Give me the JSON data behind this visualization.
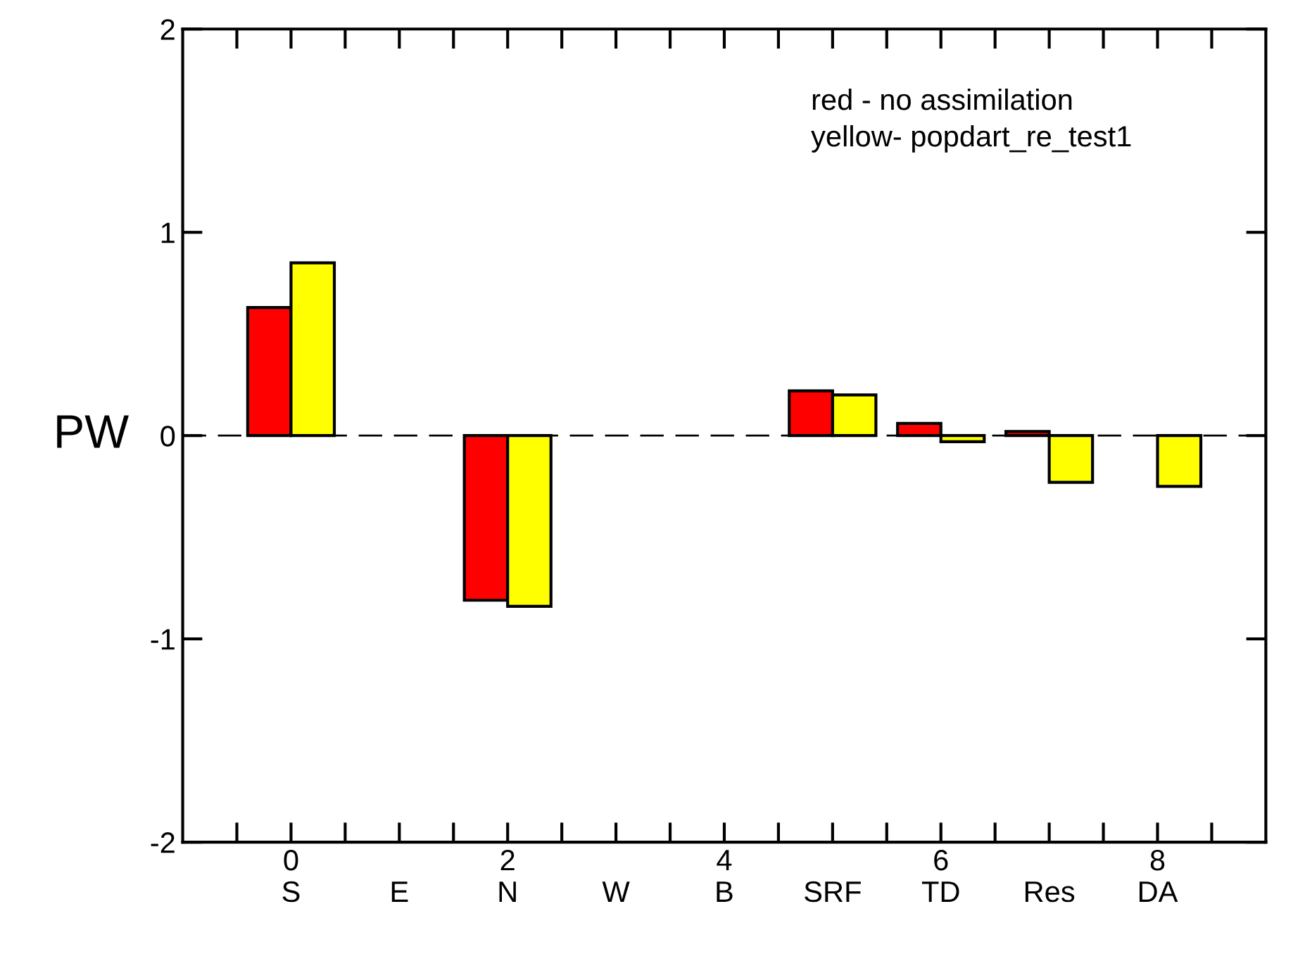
{
  "chart_data": {
    "type": "bar",
    "ylabel": "PW",
    "x": [
      0,
      1,
      2,
      3,
      4,
      5,
      6,
      7,
      8
    ],
    "series": [
      {
        "color": "#ff0000",
        "values": [
          0.63,
          0,
          -0.81,
          0,
          0,
          0.22,
          0.06,
          0.02,
          0
        ]
      },
      {
        "color": "#ffff00",
        "values": [
          0.85,
          0,
          -0.84,
          0,
          0,
          0.2,
          -0.03,
          -0.23,
          -0.25
        ]
      }
    ],
    "xlim": [
      -1,
      9
    ],
    "xticks": [
      {
        "value": -0.5,
        "label": null
      },
      {
        "value": 0,
        "label": "0\nS"
      },
      {
        "value": 0.5,
        "label": null
      },
      {
        "value": 1,
        "label": "\nE"
      },
      {
        "value": 1.5,
        "label": null
      },
      {
        "value": 2,
        "label": "2\nN"
      },
      {
        "value": 2.5,
        "label": null
      },
      {
        "value": 3,
        "label": "\nW"
      },
      {
        "value": 3.5,
        "label": null
      },
      {
        "value": 4,
        "label": "4\nB"
      },
      {
        "value": 4.5,
        "label": null
      },
      {
        "value": 5,
        "label": "\nSRF"
      },
      {
        "value": 5.5,
        "label": null
      },
      {
        "value": 6,
        "label": "6\nTD"
      },
      {
        "value": 6.5,
        "label": null
      },
      {
        "value": 7,
        "label": "\nRes"
      },
      {
        "value": 7.5,
        "label": null
      },
      {
        "value": 8,
        "label": "8\nDA"
      },
      {
        "value": 8.5,
        "label": null
      }
    ],
    "ylim": [
      -2,
      2
    ],
    "yticks": [
      -2,
      -1,
      0,
      1,
      2
    ],
    "ref_lines": [
      {
        "axis": "y",
        "value": 0,
        "line_style": "dashed",
        "color": "#000000"
      }
    ],
    "annotations": [
      "red - no assimilation",
      "yellow- popdart_re_test1"
    ],
    "grid": false,
    "legend": false
  }
}
